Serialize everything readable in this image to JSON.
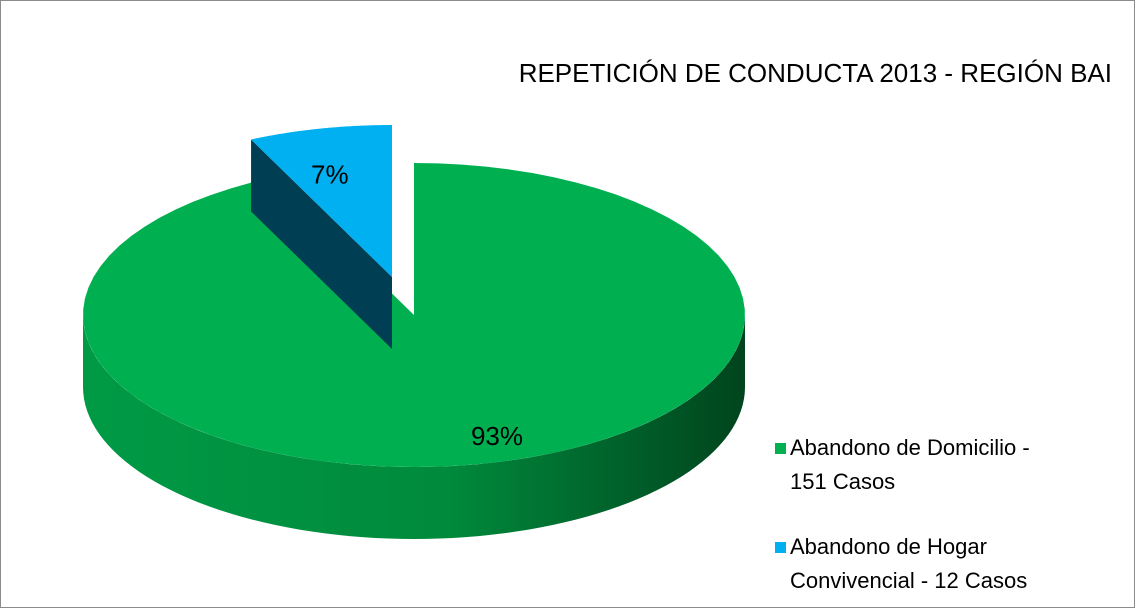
{
  "chart_data": {
    "type": "pie",
    "title": "REPETICIÓN DE CONDUCTA 2013 - REGIÓN BAI",
    "categories": [
      "Abandono de Domicilio - 151 Casos",
      "Abandono de Hogar Convivencial - 12 Casos"
    ],
    "values": [
      93,
      7
    ],
    "value_labels": [
      "93%",
      "7%"
    ],
    "colors": [
      "#00b050",
      "#00b0f0"
    ],
    "legend": "right",
    "exploded": [
      false,
      true
    ]
  }
}
